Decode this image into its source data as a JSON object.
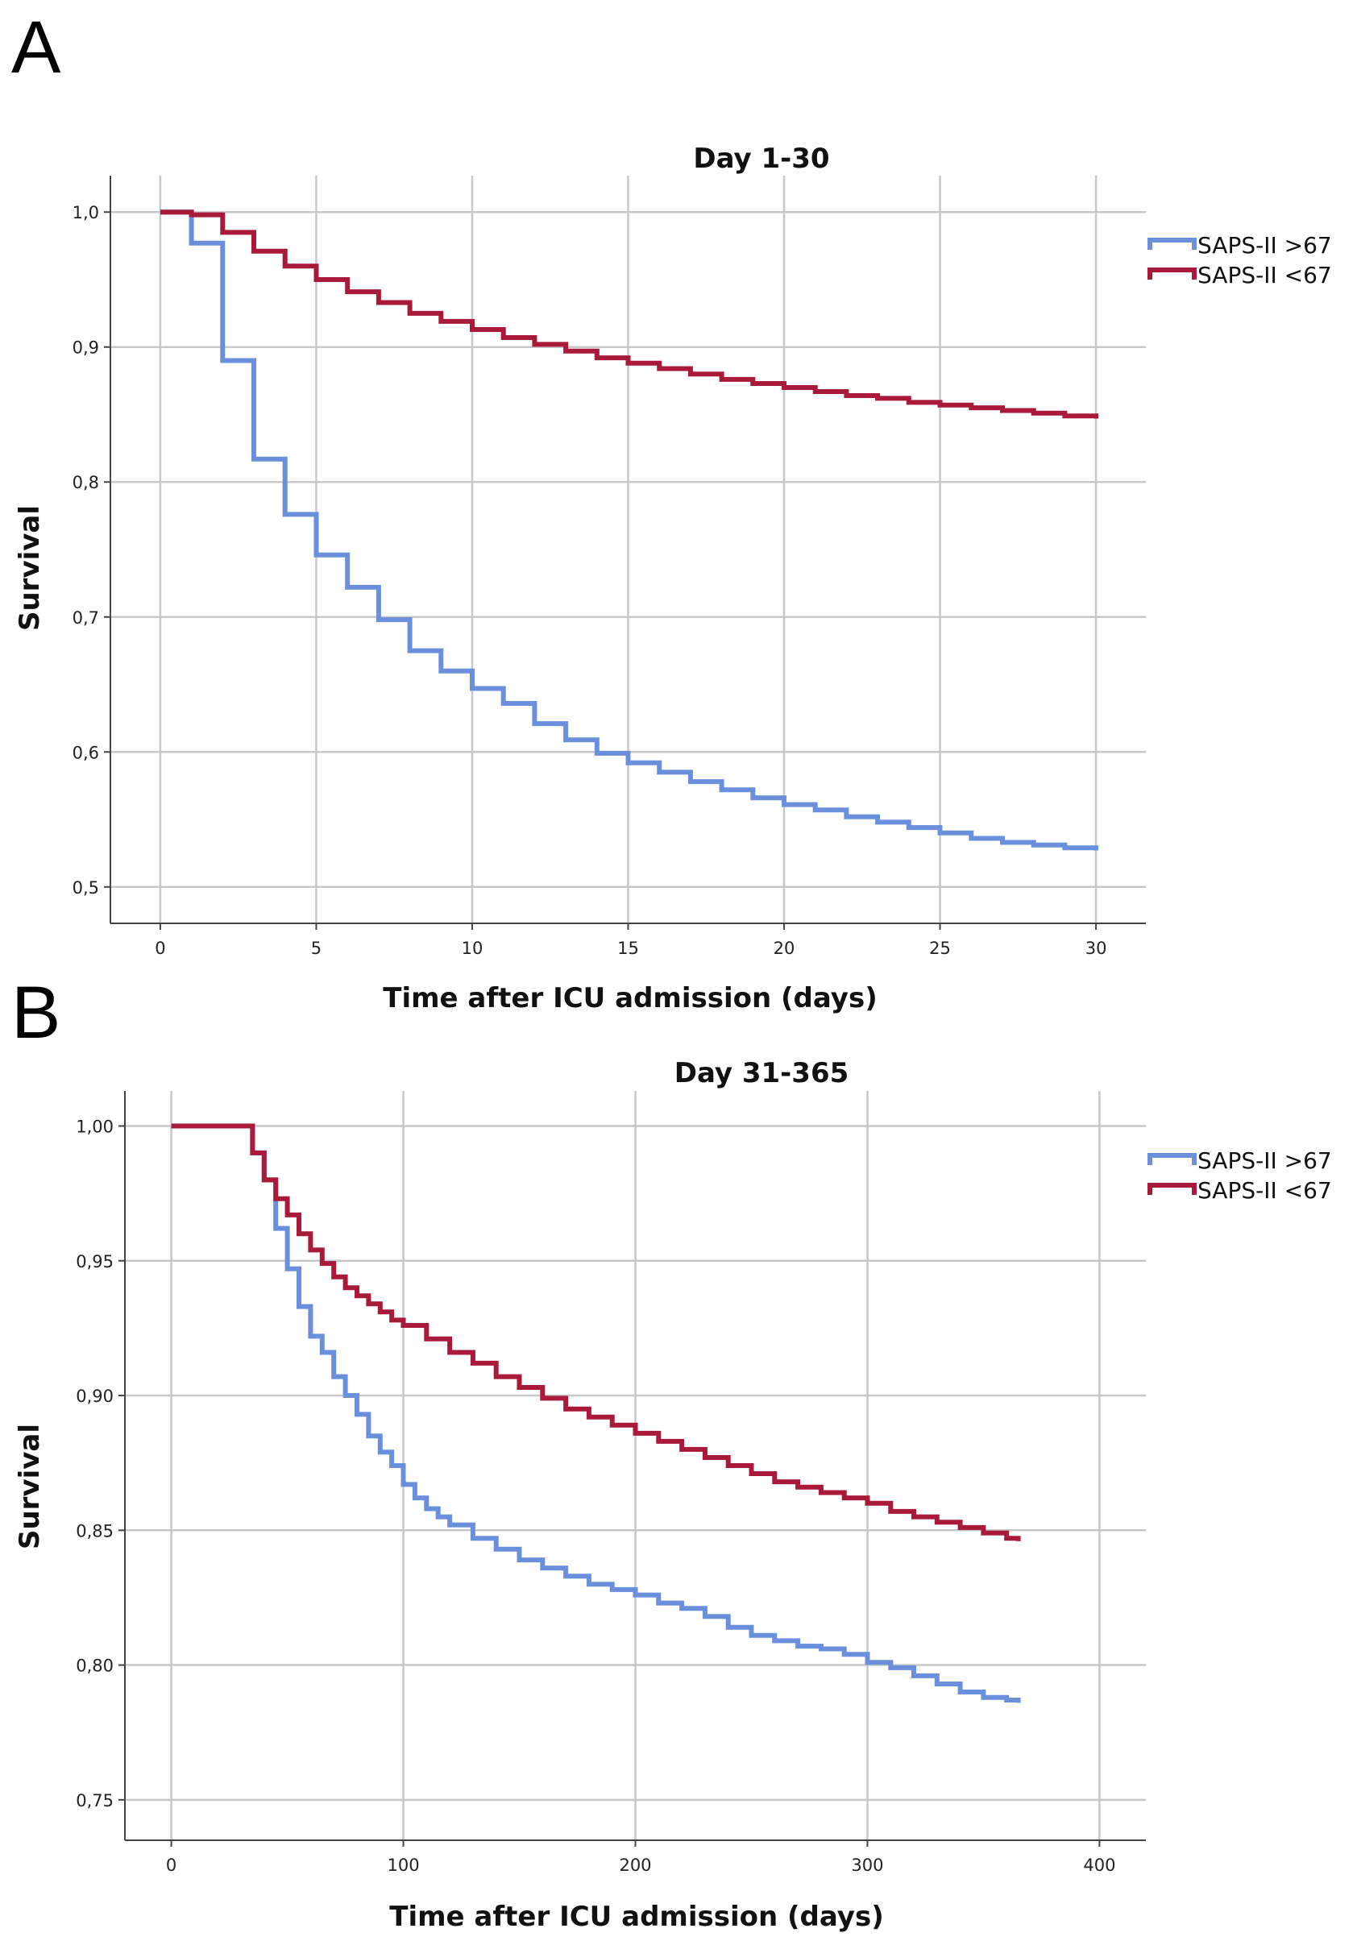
{
  "panels": [
    {
      "letter": "A"
    },
    {
      "letter": "B"
    }
  ],
  "chart_data": [
    {
      "type": "line",
      "step": true,
      "title": "Day 1-30",
      "xlabel": "Time after ICU admission (days)",
      "ylabel": "Survival",
      "xlim": [
        -1.6,
        31.6
      ],
      "ylim": [
        0.473,
        1.027
      ],
      "x_ticks": [
        0,
        5,
        10,
        15,
        20,
        25,
        30
      ],
      "x_tick_labels": [
        "0",
        "5",
        "10",
        "15",
        "20",
        "25",
        "30"
      ],
      "y_ticks": [
        0.5,
        0.6,
        0.7,
        0.8,
        0.9,
        1.0
      ],
      "y_tick_labels": [
        "0,5",
        "0,6",
        "0,7",
        "0,8",
        "0,9",
        "1,0"
      ],
      "grid": true,
      "legend_position": "top-right outside",
      "series": [
        {
          "name": "SAPS-II >67",
          "color": "#6a8fdc",
          "x": [
            0,
            1,
            2,
            3,
            4,
            5,
            6,
            7,
            8,
            9,
            10,
            11,
            12,
            13,
            14,
            15,
            16,
            17,
            18,
            19,
            20,
            21,
            22,
            23,
            24,
            25,
            26,
            27,
            28,
            29,
            30
          ],
          "y": [
            1.0,
            0.977,
            0.89,
            0.817,
            0.776,
            0.746,
            0.722,
            0.698,
            0.675,
            0.66,
            0.647,
            0.636,
            0.621,
            0.609,
            0.599,
            0.592,
            0.585,
            0.578,
            0.572,
            0.566,
            0.561,
            0.557,
            0.552,
            0.548,
            0.544,
            0.54,
            0.536,
            0.533,
            0.531,
            0.529,
            0.527
          ]
        },
        {
          "name": "SAPS-II <67",
          "color": "#a8193a",
          "x": [
            0,
            1,
            2,
            3,
            4,
            5,
            6,
            7,
            8,
            9,
            10,
            11,
            12,
            13,
            14,
            15,
            16,
            17,
            18,
            19,
            20,
            21,
            22,
            23,
            24,
            25,
            26,
            27,
            28,
            29,
            30
          ],
          "y": [
            1.0,
            0.998,
            0.985,
            0.971,
            0.96,
            0.95,
            0.941,
            0.933,
            0.925,
            0.919,
            0.913,
            0.907,
            0.902,
            0.897,
            0.892,
            0.888,
            0.884,
            0.88,
            0.876,
            0.873,
            0.87,
            0.867,
            0.864,
            0.862,
            0.859,
            0.857,
            0.855,
            0.853,
            0.851,
            0.849,
            0.847
          ]
        }
      ]
    },
    {
      "type": "line",
      "step": true,
      "title": "Day 31-365",
      "xlabel": "Time after ICU admission (days)",
      "ylabel": "Survival",
      "xlim": [
        -20,
        420
      ],
      "ylim": [
        0.735,
        1.013
      ],
      "x_ticks": [
        0,
        100,
        200,
        300,
        400
      ],
      "x_tick_labels": [
        "0",
        "100",
        "200",
        "300",
        "400"
      ],
      "y_ticks": [
        0.75,
        0.8,
        0.85,
        0.9,
        0.95,
        1.0
      ],
      "y_tick_labels": [
        "0,75",
        "0,80",
        "0,85",
        "0,90",
        "0,95",
        "1,00"
      ],
      "grid": true,
      "legend_position": "top-right outside",
      "series": [
        {
          "name": "SAPS-II >67",
          "color": "#6a8fdc",
          "x": [
            0,
            35,
            40,
            45,
            50,
            55,
            60,
            65,
            70,
            75,
            80,
            85,
            90,
            95,
            100,
            105,
            110,
            115,
            120,
            130,
            140,
            150,
            160,
            170,
            180,
            190,
            200,
            210,
            220,
            230,
            240,
            250,
            260,
            270,
            280,
            290,
            300,
            310,
            320,
            330,
            340,
            350,
            360,
            365
          ],
          "y": [
            1.0,
            0.99,
            0.98,
            0.962,
            0.947,
            0.933,
            0.922,
            0.916,
            0.907,
            0.9,
            0.893,
            0.885,
            0.879,
            0.874,
            0.867,
            0.862,
            0.858,
            0.855,
            0.852,
            0.847,
            0.843,
            0.839,
            0.836,
            0.833,
            0.83,
            0.828,
            0.826,
            0.823,
            0.821,
            0.818,
            0.814,
            0.811,
            0.809,
            0.807,
            0.806,
            0.804,
            0.801,
            0.799,
            0.796,
            0.793,
            0.79,
            0.788,
            0.787,
            0.786
          ]
        },
        {
          "name": "SAPS-II <67",
          "color": "#a8193a",
          "x": [
            0,
            35,
            40,
            45,
            50,
            55,
            60,
            65,
            70,
            75,
            80,
            85,
            90,
            95,
            100,
            110,
            120,
            130,
            140,
            150,
            160,
            170,
            180,
            190,
            200,
            210,
            220,
            230,
            240,
            250,
            260,
            270,
            280,
            290,
            300,
            310,
            320,
            330,
            340,
            350,
            360,
            365
          ],
          "y": [
            1.0,
            0.99,
            0.98,
            0.973,
            0.967,
            0.96,
            0.954,
            0.949,
            0.944,
            0.94,
            0.937,
            0.934,
            0.931,
            0.928,
            0.926,
            0.921,
            0.916,
            0.912,
            0.907,
            0.903,
            0.899,
            0.895,
            0.892,
            0.889,
            0.886,
            0.883,
            0.88,
            0.877,
            0.874,
            0.871,
            0.868,
            0.866,
            0.864,
            0.862,
            0.86,
            0.857,
            0.855,
            0.853,
            0.851,
            0.849,
            0.847,
            0.846
          ]
        }
      ]
    }
  ]
}
